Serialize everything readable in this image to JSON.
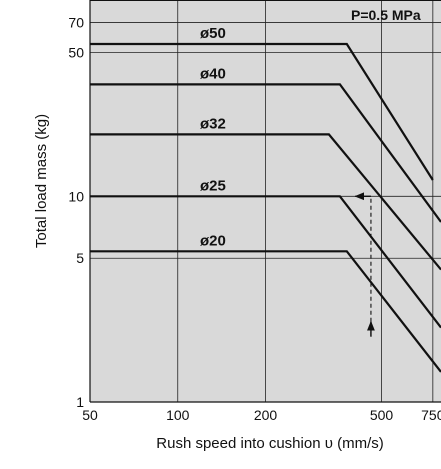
{
  "colors": {
    "plot_background": "#d9d9d9",
    "series_line": "#111111",
    "grid_line": "#222222",
    "page_background": "#ffffff"
  },
  "chart_data": {
    "type": "line",
    "title": "P=0.5 MPa",
    "xlabel": "Rush speed into cushion υ (mm/s)",
    "ylabel": "Total load mass (kg)",
    "x_scale": "log",
    "y_scale": "log",
    "xlim": [
      50,
      800
    ],
    "ylim": [
      1,
      90
    ],
    "x_ticks": [
      50,
      100,
      200,
      500,
      750
    ],
    "x_tick_labels": [
      "50",
      "100",
      "200",
      "500",
      "750"
    ],
    "y_ticks": [
      1,
      5,
      10,
      50,
      70
    ],
    "y_tick_labels": [
      "1",
      "5",
      "10",
      "50",
      "70"
    ],
    "x_gridlines": [
      100,
      200,
      500,
      750
    ],
    "y_gridlines": [
      5,
      10,
      50,
      70
    ],
    "grid": true,
    "series": [
      {
        "name": "ø50",
        "points": [
          [
            50,
            55
          ],
          [
            380,
            55
          ],
          [
            750,
            12
          ]
        ]
      },
      {
        "name": "ø40",
        "points": [
          [
            50,
            35
          ],
          [
            360,
            35
          ],
          [
            800,
            7.5
          ]
        ]
      },
      {
        "name": "ø32",
        "points": [
          [
            50,
            20
          ],
          [
            330,
            20
          ],
          [
            800,
            4.4
          ]
        ]
      },
      {
        "name": "ø25",
        "points": [
          [
            50,
            10
          ],
          [
            360,
            10
          ],
          [
            800,
            2.3
          ]
        ]
      },
      {
        "name": "ø20",
        "points": [
          [
            50,
            5.4
          ],
          [
            380,
            5.4
          ],
          [
            800,
            1.4
          ]
        ]
      }
    ],
    "annotation_arrow": {
      "x": 460,
      "from_y": 2.1,
      "to_y": 10,
      "target_x": 400
    }
  }
}
